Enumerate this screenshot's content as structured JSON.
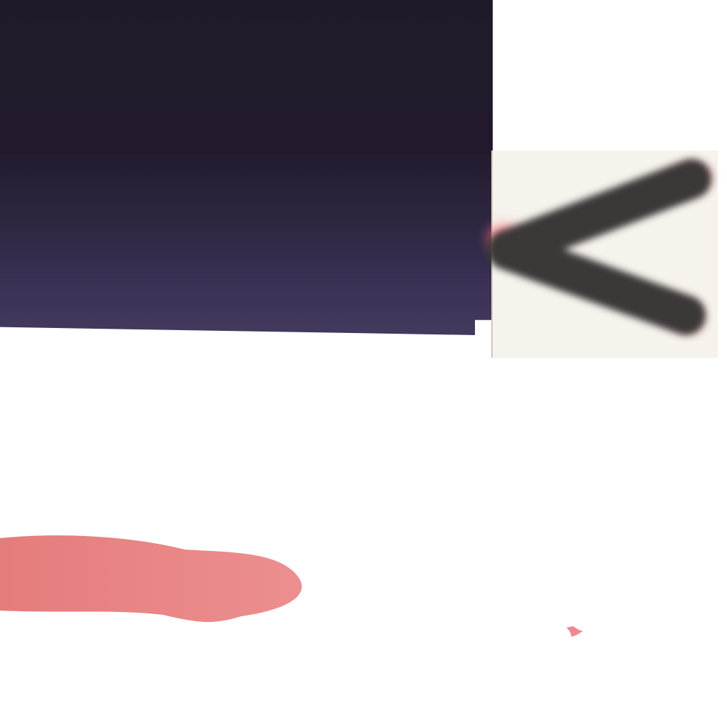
{
  "colors": {
    "panel_top": "#1f1a2a",
    "panel_bottom": "#433a5e",
    "tile_background": "#f6f2ec",
    "chevron": "#3b3838",
    "chevron_accent": "#ff6f7a",
    "pink_stroke": "#e88585"
  },
  "icons": {
    "back": "chevron-left-icon"
  }
}
